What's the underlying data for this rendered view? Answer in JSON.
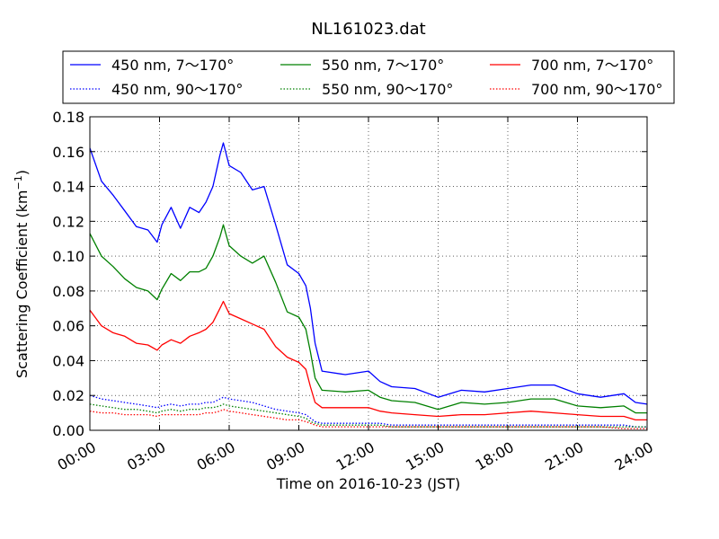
{
  "chart_data": {
    "type": "line",
    "title": "NL161023.dat",
    "xlabel": "Time on 2016-10-23 (JST)",
    "ylabel_main": "Scattering Coefficient (km",
    "ylabel_sup": "−1",
    "ylabel_end": ")",
    "xlim": [
      0,
      24
    ],
    "ylim": [
      0,
      0.18
    ],
    "grid": true,
    "legend_position": "top",
    "x_ticks": [
      0,
      3,
      6,
      9,
      12,
      15,
      18,
      21,
      24
    ],
    "x_tick_labels": [
      "00:00",
      "03:00",
      "06:00",
      "09:00",
      "12:00",
      "15:00",
      "18:00",
      "21:00",
      "24:00"
    ],
    "y_ticks": [
      0,
      0.02,
      0.04,
      0.06,
      0.08,
      0.1,
      0.12,
      0.14,
      0.16,
      0.18
    ],
    "y_tick_labels": [
      "0.00",
      "0.02",
      "0.04",
      "0.06",
      "0.08",
      "0.10",
      "0.12",
      "0.14",
      "0.16",
      "0.18"
    ],
    "x": [
      0,
      0.5,
      1,
      1.5,
      2,
      2.5,
      2.9,
      3.1,
      3.5,
      3.9,
      4.3,
      4.7,
      5.0,
      5.3,
      5.6,
      5.75,
      6.0,
      6.5,
      7.0,
      7.5,
      8.0,
      8.5,
      9.0,
      9.3,
      9.5,
      9.7,
      10.0,
      11.0,
      12.0,
      12.5,
      13.0,
      14.0,
      15.0,
      16.0,
      17.0,
      18.0,
      19.0,
      20.0,
      21.0,
      22.0,
      23.0,
      23.5,
      24.0
    ],
    "series": [
      {
        "name": "450 nm, 7～170°",
        "color": "#0000ff",
        "style": "solid",
        "values": [
          0.162,
          0.143,
          0.135,
          0.126,
          0.117,
          0.115,
          0.108,
          0.118,
          0.128,
          0.116,
          0.128,
          0.125,
          0.131,
          0.14,
          0.158,
          0.165,
          0.152,
          0.148,
          0.138,
          0.14,
          0.118,
          0.095,
          0.09,
          0.083,
          0.07,
          0.05,
          0.034,
          0.032,
          0.034,
          0.028,
          0.025,
          0.024,
          0.019,
          0.023,
          0.022,
          0.024,
          0.026,
          0.026,
          0.021,
          0.019,
          0.021,
          0.016,
          0.015
        ]
      },
      {
        "name": "550 nm, 7～170°",
        "color": "#008000",
        "style": "solid",
        "values": [
          0.113,
          0.1,
          0.094,
          0.087,
          0.082,
          0.08,
          0.075,
          0.081,
          0.09,
          0.086,
          0.091,
          0.091,
          0.093,
          0.1,
          0.111,
          0.118,
          0.106,
          0.1,
          0.096,
          0.1,
          0.085,
          0.068,
          0.065,
          0.058,
          0.045,
          0.03,
          0.023,
          0.022,
          0.023,
          0.019,
          0.017,
          0.016,
          0.012,
          0.016,
          0.015,
          0.016,
          0.018,
          0.018,
          0.014,
          0.013,
          0.014,
          0.01,
          0.01
        ]
      },
      {
        "name": "700 nm, 7～170°",
        "color": "#ff0000",
        "style": "solid",
        "values": [
          0.069,
          0.06,
          0.056,
          0.054,
          0.05,
          0.049,
          0.046,
          0.049,
          0.052,
          0.05,
          0.054,
          0.056,
          0.058,
          0.062,
          0.07,
          0.074,
          0.067,
          0.064,
          0.061,
          0.058,
          0.048,
          0.042,
          0.039,
          0.035,
          0.025,
          0.016,
          0.013,
          0.013,
          0.013,
          0.011,
          0.01,
          0.009,
          0.008,
          0.009,
          0.009,
          0.01,
          0.011,
          0.01,
          0.009,
          0.008,
          0.008,
          0.006,
          0.006
        ]
      },
      {
        "name": "450 nm, 90～170°",
        "color": "#0000ff",
        "style": "dotted",
        "values": [
          0.02,
          0.018,
          0.017,
          0.016,
          0.015,
          0.014,
          0.013,
          0.014,
          0.015,
          0.014,
          0.015,
          0.015,
          0.016,
          0.016,
          0.018,
          0.019,
          0.018,
          0.017,
          0.016,
          0.014,
          0.012,
          0.011,
          0.01,
          0.009,
          0.007,
          0.005,
          0.004,
          0.004,
          0.004,
          0.004,
          0.003,
          0.003,
          0.003,
          0.003,
          0.003,
          0.003,
          0.003,
          0.003,
          0.003,
          0.003,
          0.003,
          0.002,
          0.002
        ]
      },
      {
        "name": "550 nm, 90～170°",
        "color": "#008000",
        "style": "dotted",
        "values": [
          0.015,
          0.014,
          0.013,
          0.012,
          0.012,
          0.011,
          0.01,
          0.011,
          0.012,
          0.011,
          0.012,
          0.012,
          0.013,
          0.013,
          0.014,
          0.015,
          0.014,
          0.013,
          0.012,
          0.011,
          0.01,
          0.009,
          0.008,
          0.007,
          0.005,
          0.004,
          0.003,
          0.003,
          0.003,
          0.003,
          0.002,
          0.002,
          0.002,
          0.002,
          0.002,
          0.002,
          0.002,
          0.002,
          0.002,
          0.002,
          0.002,
          0.002,
          0.002
        ]
      },
      {
        "name": "700 nm, 90～170°",
        "color": "#ff0000",
        "style": "dotted",
        "values": [
          0.011,
          0.01,
          0.01,
          0.009,
          0.009,
          0.009,
          0.008,
          0.009,
          0.009,
          0.009,
          0.009,
          0.009,
          0.01,
          0.01,
          0.011,
          0.012,
          0.011,
          0.01,
          0.009,
          0.008,
          0.007,
          0.006,
          0.006,
          0.005,
          0.004,
          0.003,
          0.002,
          0.002,
          0.002,
          0.002,
          0.002,
          0.002,
          0.002,
          0.002,
          0.002,
          0.002,
          0.002,
          0.002,
          0.002,
          0.002,
          0.001,
          0.001,
          0.001
        ]
      }
    ]
  }
}
